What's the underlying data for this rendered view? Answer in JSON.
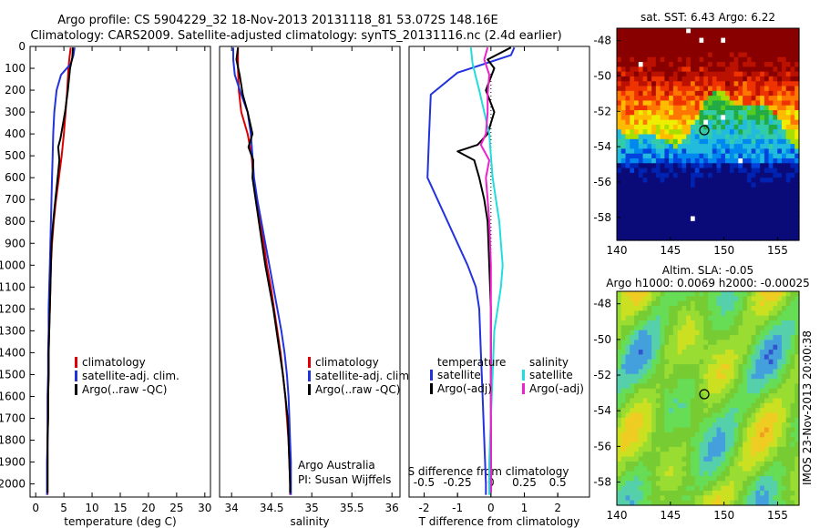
{
  "header": {
    "line1": "Argo profile: CS 5904229_32 18-Nov-2013 20131118_81 53.072S 148.16E",
    "line2": "Climatology: CARS2009. Satellite-adjusted climatology: synTS_20131116.nc (2.4d earlier)"
  },
  "side_label": "IMOS 23-Nov-2013 20:00:38",
  "chart_data": [
    {
      "id": "temperature",
      "type": "line",
      "xlabel": "temperature (deg C)",
      "ylabel": "",
      "xlim": [
        -1,
        31
      ],
      "ylim": [
        2060,
        0
      ],
      "xticks": [
        0,
        5,
        10,
        15,
        20,
        25,
        30
      ],
      "yticks": [
        0,
        100,
        200,
        300,
        400,
        500,
        600,
        700,
        800,
        900,
        1000,
        1100,
        1200,
        1300,
        1400,
        1500,
        1600,
        1700,
        1800,
        1900,
        2000
      ],
      "legend": [
        "climatology",
        "satellite-adj. clim.",
        "Argo(..raw -QC)"
      ],
      "legend_position": "lower-right",
      "series": [
        {
          "name": "climatology",
          "color": "#dd0000",
          "points": [
            [
              6.2,
              5
            ],
            [
              6.0,
              50
            ],
            [
              5.8,
              100
            ],
            [
              5.6,
              200
            ],
            [
              5.3,
              300
            ],
            [
              5.0,
              400
            ],
            [
              4.6,
              500
            ],
            [
              4.1,
              600
            ],
            [
              3.6,
              700
            ],
            [
              3.2,
              800
            ],
            [
              2.9,
              900
            ],
            [
              2.7,
              1000
            ],
            [
              2.6,
              1100
            ],
            [
              2.5,
              1200
            ],
            [
              2.4,
              1300
            ],
            [
              2.3,
              1400
            ],
            [
              2.3,
              1500
            ],
            [
              2.2,
              1600
            ],
            [
              2.2,
              1700
            ],
            [
              2.1,
              1800
            ],
            [
              2.1,
              1900
            ],
            [
              2.1,
              2000
            ],
            [
              2.1,
              2050
            ]
          ]
        },
        {
          "name": "satellite-adj. clim.",
          "color": "#2233dd",
          "points": [
            [
              6.9,
              5
            ],
            [
              6.7,
              40
            ],
            [
              6.2,
              80
            ],
            [
              4.5,
              130
            ],
            [
              3.7,
              200
            ],
            [
              3.3,
              300
            ],
            [
              3.1,
              400
            ],
            [
              3.0,
              500
            ],
            [
              2.9,
              600
            ],
            [
              2.8,
              700
            ],
            [
              2.7,
              800
            ],
            [
              2.6,
              900
            ],
            [
              2.5,
              1000
            ],
            [
              2.4,
              1100
            ],
            [
              2.3,
              1200
            ],
            [
              2.3,
              1300
            ],
            [
              2.2,
              1400
            ],
            [
              2.2,
              1500
            ],
            [
              2.1,
              1600
            ],
            [
              2.1,
              1700
            ],
            [
              2.1,
              1800
            ],
            [
              2.0,
              1900
            ],
            [
              2.0,
              2000
            ],
            [
              2.0,
              2050
            ]
          ]
        },
        {
          "name": "Argo(..raw -QC)",
          "color": "#000000",
          "points": [
            [
              6.6,
              5
            ],
            [
              6.5,
              50
            ],
            [
              6.1,
              100
            ],
            [
              5.7,
              200
            ],
            [
              5.2,
              300
            ],
            [
              4.4,
              420
            ],
            [
              4.0,
              460
            ],
            [
              4.2,
              520
            ],
            [
              3.9,
              600
            ],
            [
              3.5,
              700
            ],
            [
              3.1,
              800
            ],
            [
              2.8,
              900
            ],
            [
              2.7,
              1000
            ],
            [
              2.6,
              1100
            ],
            [
              2.5,
              1200
            ],
            [
              2.4,
              1300
            ],
            [
              2.3,
              1400
            ],
            [
              2.3,
              1500
            ],
            [
              2.2,
              1600
            ],
            [
              2.2,
              1700
            ],
            [
              2.1,
              1800
            ],
            [
              2.1,
              1900
            ],
            [
              2.1,
              2000
            ],
            [
              2.1,
              2040
            ]
          ]
        }
      ]
    },
    {
      "id": "salinity",
      "type": "line",
      "xlabel": "salinity",
      "ylabel": "",
      "xlim": [
        33.85,
        36.1
      ],
      "ylim": [
        2060,
        0
      ],
      "xticks": [
        34,
        34.5,
        35,
        35.5,
        36
      ],
      "yticks": [],
      "legend": [
        "climatology",
        "satellite-adj. clim.",
        "Argo(..raw -QC)"
      ],
      "legend_position": "lower-right",
      "annotation": [
        "Argo Australia",
        "PI: Susan Wijffels"
      ],
      "series": [
        {
          "name": "climatology",
          "color": "#dd0000",
          "points": [
            [
              34.08,
              5
            ],
            [
              34.08,
              100
            ],
            [
              34.09,
              200
            ],
            [
              34.12,
              300
            ],
            [
              34.2,
              400
            ],
            [
              34.25,
              500
            ],
            [
              34.27,
              600
            ],
            [
              34.31,
              700
            ],
            [
              34.35,
              800
            ],
            [
              34.4,
              900
            ],
            [
              34.44,
              1000
            ],
            [
              34.49,
              1100
            ],
            [
              34.53,
              1200
            ],
            [
              34.57,
              1300
            ],
            [
              34.61,
              1400
            ],
            [
              34.64,
              1500
            ],
            [
              34.67,
              1600
            ],
            [
              34.69,
              1700
            ],
            [
              34.71,
              1800
            ],
            [
              34.72,
              1900
            ],
            [
              34.73,
              2000
            ],
            [
              34.73,
              2050
            ]
          ]
        },
        {
          "name": "satellite-adj. clim.",
          "color": "#2233dd",
          "points": [
            [
              34.02,
              5
            ],
            [
              34.02,
              60
            ],
            [
              34.04,
              130
            ],
            [
              34.12,
              220
            ],
            [
              34.2,
              300
            ],
            [
              34.24,
              400
            ],
            [
              34.26,
              500
            ],
            [
              34.28,
              600
            ],
            [
              34.32,
              700
            ],
            [
              34.37,
              800
            ],
            [
              34.42,
              900
            ],
            [
              34.47,
              1000
            ],
            [
              34.52,
              1100
            ],
            [
              34.57,
              1200
            ],
            [
              34.62,
              1300
            ],
            [
              34.66,
              1400
            ],
            [
              34.69,
              1500
            ],
            [
              34.71,
              1600
            ],
            [
              34.72,
              1700
            ],
            [
              34.73,
              1800
            ],
            [
              34.74,
              1900
            ],
            [
              34.74,
              2000
            ],
            [
              34.74,
              2050
            ]
          ]
        },
        {
          "name": "Argo(..raw -QC)",
          "color": "#000000",
          "points": [
            [
              34.08,
              5
            ],
            [
              34.06,
              60
            ],
            [
              34.1,
              130
            ],
            [
              34.14,
              220
            ],
            [
              34.2,
              300
            ],
            [
              34.26,
              400
            ],
            [
              34.21,
              460
            ],
            [
              34.27,
              520
            ],
            [
              34.26,
              600
            ],
            [
              34.3,
              700
            ],
            [
              34.34,
              800
            ],
            [
              34.38,
              900
            ],
            [
              34.42,
              1000
            ],
            [
              34.47,
              1100
            ],
            [
              34.52,
              1200
            ],
            [
              34.56,
              1300
            ],
            [
              34.6,
              1400
            ],
            [
              34.64,
              1500
            ],
            [
              34.67,
              1600
            ],
            [
              34.7,
              1700
            ],
            [
              34.71,
              1800
            ],
            [
              34.72,
              1900
            ],
            [
              34.73,
              2000
            ],
            [
              34.73,
              2040
            ]
          ]
        }
      ]
    },
    {
      "id": "difference",
      "type": "line",
      "xlabel": "T difference from climatology",
      "top_xlabel": "S difference from climatology",
      "ylabel": "",
      "xlim": [
        -2.45,
        2.95
      ],
      "ylim": [
        2060,
        0
      ],
      "xticks": [
        -2,
        -1,
        0,
        1,
        2
      ],
      "sticks_values": [
        -0.5,
        -0.25,
        0,
        0.25,
        0.5
      ],
      "sticks_labels": [
        "-0.5",
        "-0.25",
        "0",
        "0.25",
        "0.5"
      ],
      "yticks": [],
      "legend_left_title": "temperature",
      "legend_right_title": "salinity",
      "legend": [
        "satellite",
        "Argo(-adj)",
        "satellite",
        "Argo(-adj)"
      ],
      "legend_position": "lower-center",
      "series": [
        {
          "name": "satellite",
          "color": "#2233dd",
          "points": [
            [
              0.7,
              5
            ],
            [
              0.6,
              40
            ],
            [
              -1.0,
              120
            ],
            [
              -1.8,
              220
            ],
            [
              -1.85,
              400
            ],
            [
              -1.9,
              600
            ],
            [
              -1.6,
              700
            ],
            [
              -1.3,
              800
            ],
            [
              -1.0,
              900
            ],
            [
              -0.7,
              1000
            ],
            [
              -0.45,
              1100
            ],
            [
              -0.35,
              1200
            ],
            [
              -0.3,
              1400
            ],
            [
              -0.25,
              1600
            ],
            [
              -0.2,
              1800
            ],
            [
              -0.15,
              2000
            ],
            [
              -0.15,
              2050
            ]
          ]
        },
        {
          "name": "Argo(-adj)",
          "color": "#000000",
          "points": [
            [
              0.6,
              5
            ],
            [
              -0.1,
              60
            ],
            [
              0.1,
              100
            ],
            [
              -0.15,
              200
            ],
            [
              0.1,
              300
            ],
            [
              -0.1,
              400
            ],
            [
              -0.4,
              450
            ],
            [
              -1.0,
              480
            ],
            [
              -0.5,
              520
            ],
            [
              -0.35,
              600
            ],
            [
              -0.2,
              700
            ],
            [
              -0.1,
              800
            ],
            [
              -0.05,
              1000
            ],
            [
              0.0,
              1200
            ],
            [
              0.0,
              1500
            ],
            [
              0.0,
              1800
            ],
            [
              0.0,
              2000
            ],
            [
              0.0,
              2040
            ]
          ]
        },
        {
          "name": "satellite",
          "color": "#22dddd",
          "points": [
            [
              -0.6,
              5
            ],
            [
              -0.55,
              80
            ],
            [
              -0.35,
              200
            ],
            [
              -0.2,
              300
            ],
            [
              -0.05,
              400
            ],
            [
              0.0,
              500
            ],
            [
              0.05,
              600
            ],
            [
              0.15,
              700
            ],
            [
              0.25,
              800
            ],
            [
              0.3,
              900
            ],
            [
              0.35,
              1000
            ],
            [
              0.3,
              1100
            ],
            [
              0.2,
              1200
            ],
            [
              0.1,
              1300
            ],
            [
              0.05,
              1500
            ],
            [
              0.0,
              1700
            ],
            [
              -0.05,
              1900
            ],
            [
              -0.05,
              2050
            ]
          ]
        },
        {
          "name": "Argo(-adj)",
          "color": "#ee22cc",
          "points": [
            [
              -0.1,
              5
            ],
            [
              -0.2,
              60
            ],
            [
              -0.05,
              130
            ],
            [
              -0.1,
              220
            ],
            [
              -0.1,
              300
            ],
            [
              -0.15,
              400
            ],
            [
              -0.3,
              450
            ],
            [
              -0.05,
              520
            ],
            [
              -0.15,
              600
            ],
            [
              -0.1,
              700
            ],
            [
              -0.05,
              800
            ],
            [
              0.0,
              1000
            ],
            [
              0.0,
              1200
            ],
            [
              0.0,
              1500
            ],
            [
              0.0,
              1800
            ],
            [
              0.0,
              2000
            ],
            [
              0.0,
              2040
            ]
          ]
        }
      ]
    },
    {
      "id": "sst-map",
      "type": "heatmap",
      "title": "sat. SST: 6.43  Argo: 6.22",
      "xlim": [
        140,
        157
      ],
      "ylim": [
        -59.3,
        -47.3
      ],
      "xticks": [
        140,
        145,
        150,
        155
      ],
      "yticks": [
        -48,
        -50,
        -52,
        -54,
        -56,
        -58
      ],
      "marker": [
        148.16,
        -53.07
      ]
    },
    {
      "id": "sla-map",
      "type": "heatmap",
      "title_line1": "Altim. SLA: -0.05",
      "title_line2": "Argo h1000: 0.0069  h2000: -0.00025",
      "xlim": [
        140,
        157
      ],
      "ylim": [
        -59.3,
        -47.3
      ],
      "xticks": [
        140,
        145,
        150,
        155
      ],
      "yticks": [
        -48,
        -50,
        -52,
        -54,
        -56,
        -58
      ],
      "marker": [
        148.16,
        -53.07
      ]
    }
  ]
}
